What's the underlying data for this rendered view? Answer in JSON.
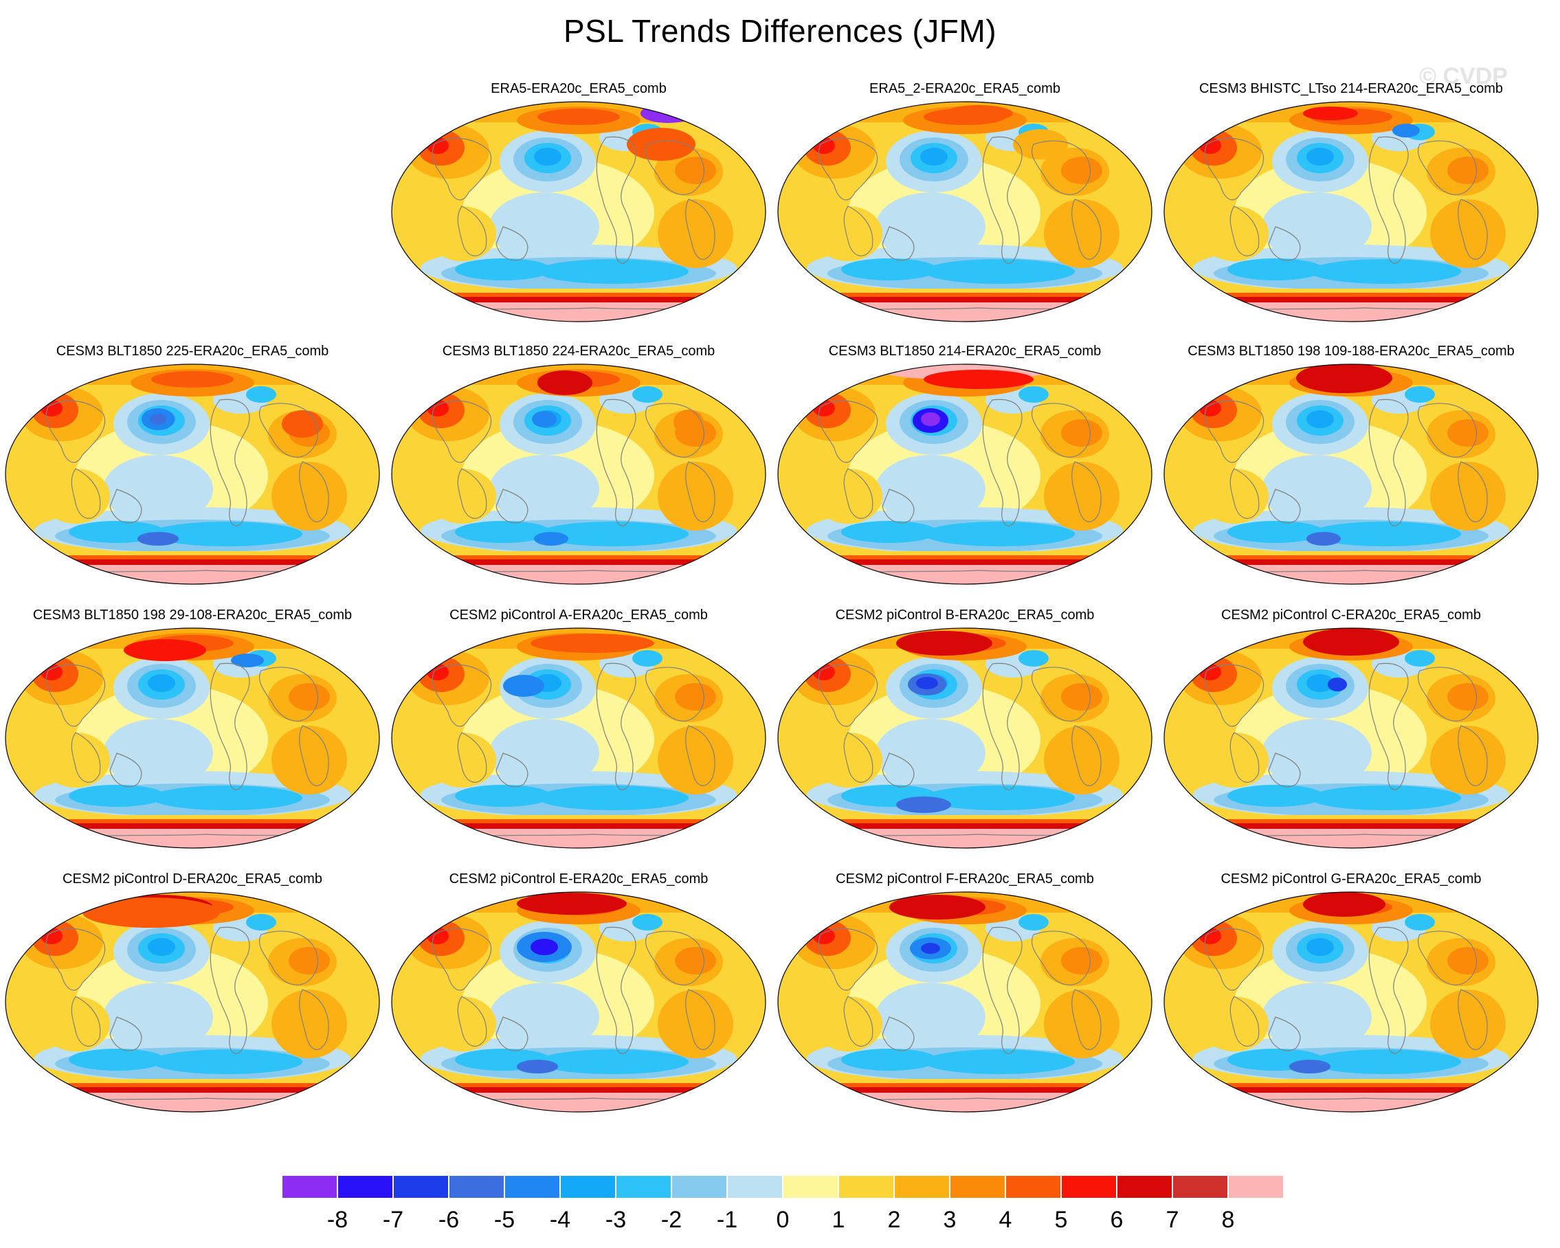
{
  "title": "PSL Trends Differences (JFM)",
  "watermark": "© CVDP",
  "colors": {
    "levels": [
      "#8d2df4",
      "#2a12f8",
      "#1d3cea",
      "#3c6ee0",
      "#1f86f2",
      "#14a8f8",
      "#2dc2f8",
      "#86c9ee",
      "#bde1f2",
      "#fdf79a",
      "#fbd437",
      "#fbb014",
      "#fa8a08",
      "#fa5a08",
      "#fa1405",
      "#d80808",
      "#d0302c",
      "#fcb4b4"
    ],
    "coast": "#808080",
    "background": "#ffffff"
  },
  "colorbar": {
    "labels": [
      "-8",
      "-7",
      "-6",
      "-5",
      "-4",
      "-3",
      "-2",
      "-1",
      "0",
      "1",
      "2",
      "3",
      "4",
      "5",
      "6",
      "7",
      "8"
    ]
  },
  "panels": [
    {
      "label": "ERA5-ERA20c_ERA5_comb"
    },
    {
      "label": "ERA5_2-ERA20c_ERA5_comb"
    },
    {
      "label": "CESM3 BHISTC_LTso 214-ERA20c_ERA5_comb"
    },
    {
      "label": "CESM3 BLT1850 225-ERA20c_ERA5_comb"
    },
    {
      "label": "CESM3 BLT1850 224-ERA20c_ERA5_comb"
    },
    {
      "label": "CESM3 BLT1850 214-ERA20c_ERA5_comb"
    },
    {
      "label": "CESM3 BLT1850 198 109-188-ERA20c_ERA5_comb"
    },
    {
      "label": "CESM3 BLT1850 198 29-108-ERA20c_ERA5_comb"
    },
    {
      "label": "CESM2 piControl A-ERA20c_ERA5_comb"
    },
    {
      "label": "CESM2 piControl B-ERA20c_ERA5_comb"
    },
    {
      "label": "CESM2 piControl C-ERA20c_ERA5_comb"
    },
    {
      "label": "CESM2 piControl D-ERA20c_ERA5_comb"
    },
    {
      "label": "CESM2 piControl E-ERA20c_ERA5_comb"
    },
    {
      "label": "CESM2 piControl F-ERA20c_ERA5_comb"
    },
    {
      "label": "CESM2 piControl G-ERA20c_ERA5_comb"
    }
  ]
}
